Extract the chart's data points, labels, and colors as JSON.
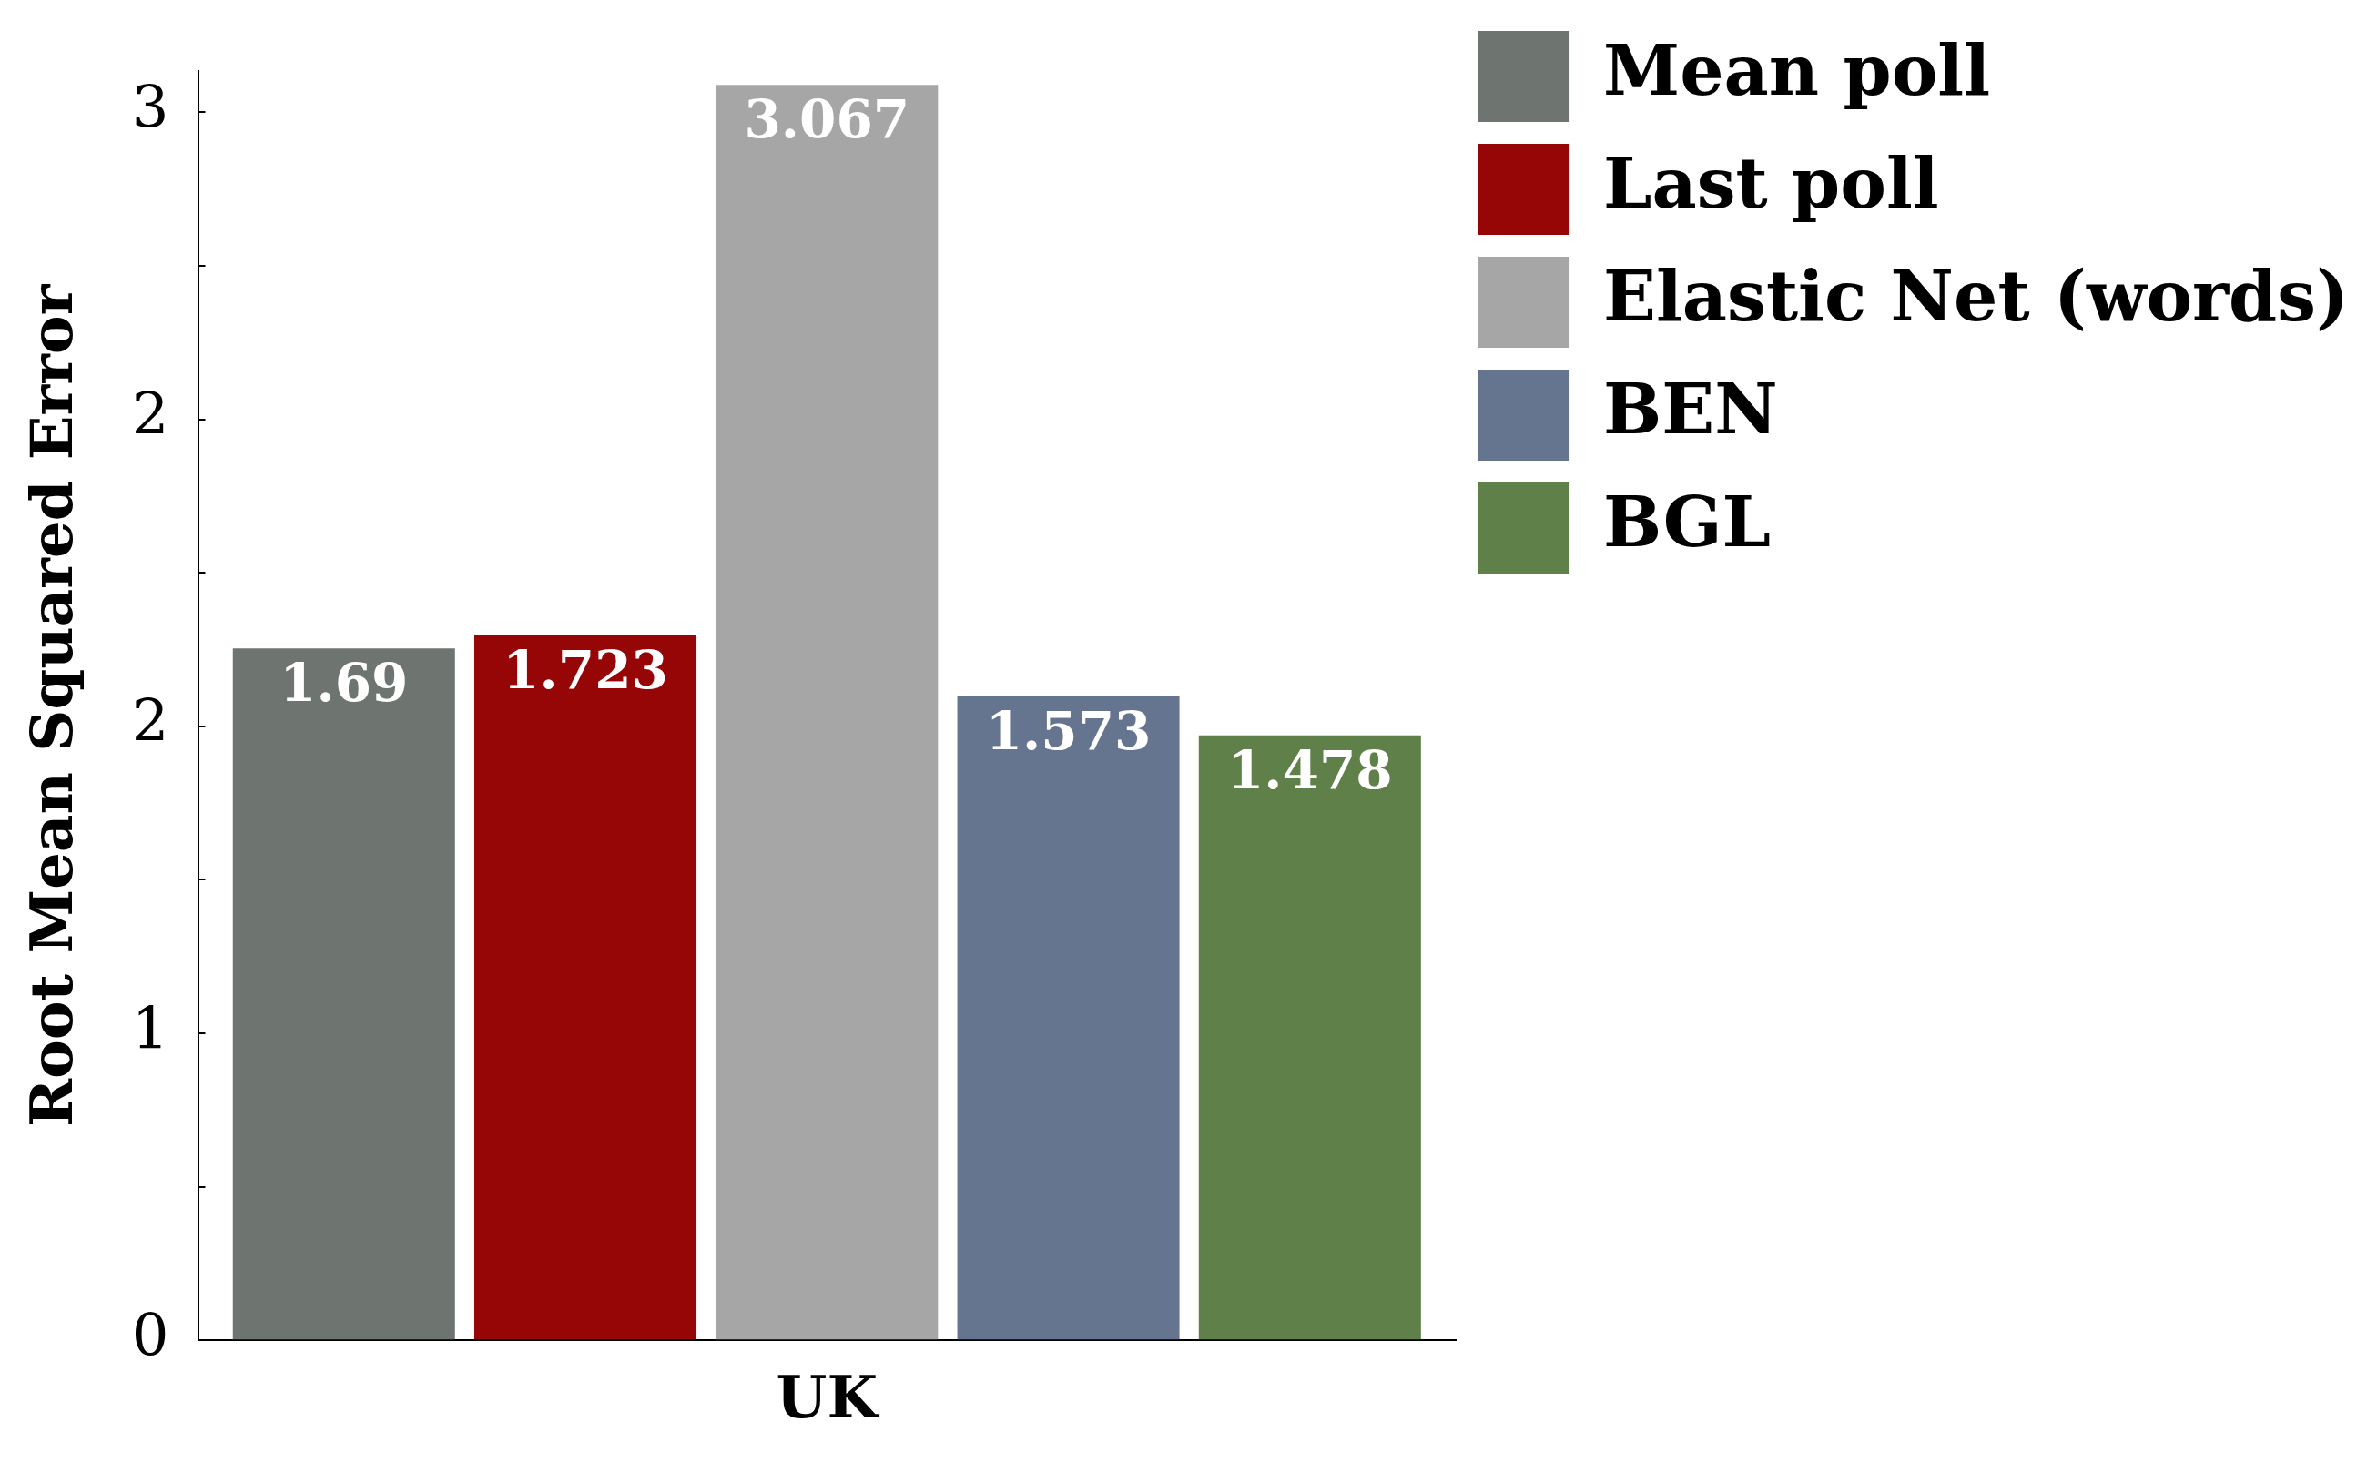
{
  "chart_data": {
    "type": "bar",
    "ylabel": "Root Mean Squared Error",
    "categories": [
      "UK"
    ],
    "series": [
      {
        "name": "Mean poll",
        "color": "#6e7571",
        "values": [
          1.69
        ]
      },
      {
        "name": "Last poll",
        "color": "#970607",
        "values": [
          1.723
        ]
      },
      {
        "name": "Elastic Net (words)",
        "color": "#a6a6a6",
        "values": [
          3.067
        ]
      },
      {
        "name": "BEN",
        "color": "#66758f",
        "values": [
          1.573
        ]
      },
      {
        "name": "BGL",
        "color": "#5f8048",
        "values": [
          1.478
        ]
      }
    ],
    "ylim": [
      0,
      3.1
    ],
    "yticks": [
      {
        "value": 0,
        "label": "0"
      },
      {
        "value": 0.375,
        "label": null
      },
      {
        "value": 0.75,
        "label": "1"
      },
      {
        "value": 1.125,
        "label": null
      },
      {
        "value": 1.5,
        "label": "2"
      },
      {
        "value": 1.875,
        "label": null
      },
      {
        "value": 2.25,
        "label": "2"
      },
      {
        "value": 2.625,
        "label": null
      },
      {
        "value": 3,
        "label": "3"
      }
    ],
    "data_labels": true,
    "grid": false,
    "legend": "top right"
  }
}
